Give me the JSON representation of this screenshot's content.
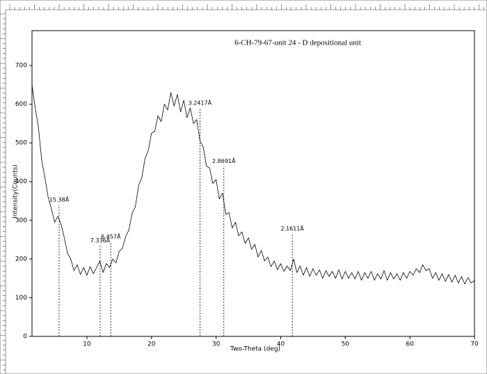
{
  "chart_data": {
    "type": "line",
    "title": "6-CH-79-67-unit 24 - D depositional unit",
    "x_label": "Two-Theta (deg)",
    "y_label": "Intensity(Counts)",
    "color": "#000000",
    "xlim": [
      1.5,
      70
    ],
    "xticks": [
      10,
      20,
      30,
      40,
      50,
      60,
      70
    ],
    "ylim": [
      0,
      790
    ],
    "yticks": [
      0,
      100,
      200,
      300,
      400,
      500,
      600,
      700
    ],
    "x": [
      1.5,
      2,
      2.5,
      3,
      3.5,
      4,
      4.5,
      5,
      5.5,
      6,
      6.5,
      7,
      7.5,
      8,
      8.5,
      9,
      9.5,
      10,
      10.5,
      11,
      11.5,
      12,
      12.5,
      13,
      13.5,
      14,
      14.5,
      15,
      15.5,
      16,
      16.5,
      17,
      17.5,
      18,
      18.5,
      19,
      19.5,
      20,
      20.5,
      21,
      21.5,
      22,
      22.5,
      23,
      23.5,
      24,
      24.5,
      25,
      25.5,
      26,
      26.5,
      27,
      27.5,
      28,
      28.5,
      29,
      29.5,
      30,
      30.5,
      31,
      31.5,
      32,
      32.5,
      33,
      33.5,
      34,
      34.5,
      35,
      35.5,
      36,
      36.5,
      37,
      37.5,
      38,
      38.5,
      39,
      39.5,
      40,
      40.5,
      41,
      41.5,
      42,
      42.5,
      43,
      43.5,
      44,
      44.5,
      45,
      45.5,
      46,
      46.5,
      47,
      47.5,
      48,
      48.5,
      49,
      49.5,
      50,
      50.5,
      51,
      51.5,
      52,
      52.5,
      53,
      53.5,
      54,
      54.5,
      55,
      55.5,
      56,
      56.5,
      57,
      57.5,
      58,
      58.5,
      59,
      59.5,
      60,
      60.5,
      61,
      61.5,
      62,
      62.5,
      63,
      63.5,
      64,
      64.5,
      65,
      65.5,
      66,
      66.5,
      67,
      67.5,
      68,
      68.5,
      69,
      69.5,
      70
    ],
    "values": [
      650,
      590,
      540,
      455,
      410,
      360,
      330,
      295,
      310,
      290,
      255,
      215,
      200,
      170,
      185,
      160,
      178,
      158,
      180,
      162,
      178,
      195,
      165,
      188,
      178,
      200,
      190,
      220,
      228,
      258,
      275,
      318,
      335,
      390,
      410,
      460,
      480,
      525,
      530,
      570,
      555,
      600,
      585,
      630,
      595,
      625,
      580,
      610,
      565,
      590,
      550,
      560,
      505,
      490,
      440,
      435,
      395,
      405,
      355,
      370,
      315,
      320,
      280,
      295,
      260,
      270,
      240,
      255,
      225,
      238,
      205,
      222,
      195,
      205,
      180,
      195,
      172,
      188,
      168,
      182,
      170,
      200,
      165,
      182,
      158,
      178,
      155,
      175,
      158,
      172,
      150,
      170,
      155,
      168,
      150,
      172,
      148,
      168,
      150,
      165,
      148,
      168,
      145,
      165,
      150,
      168,
      145,
      162,
      148,
      170,
      145,
      165,
      148,
      162,
      145,
      165,
      150,
      168,
      158,
      175,
      165,
      185,
      170,
      175,
      150,
      165,
      145,
      162,
      142,
      160,
      140,
      158,
      138,
      155,
      135,
      152,
      138,
      145
    ],
    "annotations": [
      {
        "label": "15.38Å",
        "x": 5.7,
        "y": 340
      },
      {
        "label": "7.336Å",
        "x": 12.05,
        "y": 235
      },
      {
        "label": "6.457Å",
        "x": 13.7,
        "y": 245
      },
      {
        "label": "3.2417Å",
        "x": 27.5,
        "y": 590
      },
      {
        "label": "2.8691Å",
        "x": 31.2,
        "y": 440
      },
      {
        "label": "2.1611Å",
        "x": 41.8,
        "y": 265
      }
    ]
  }
}
